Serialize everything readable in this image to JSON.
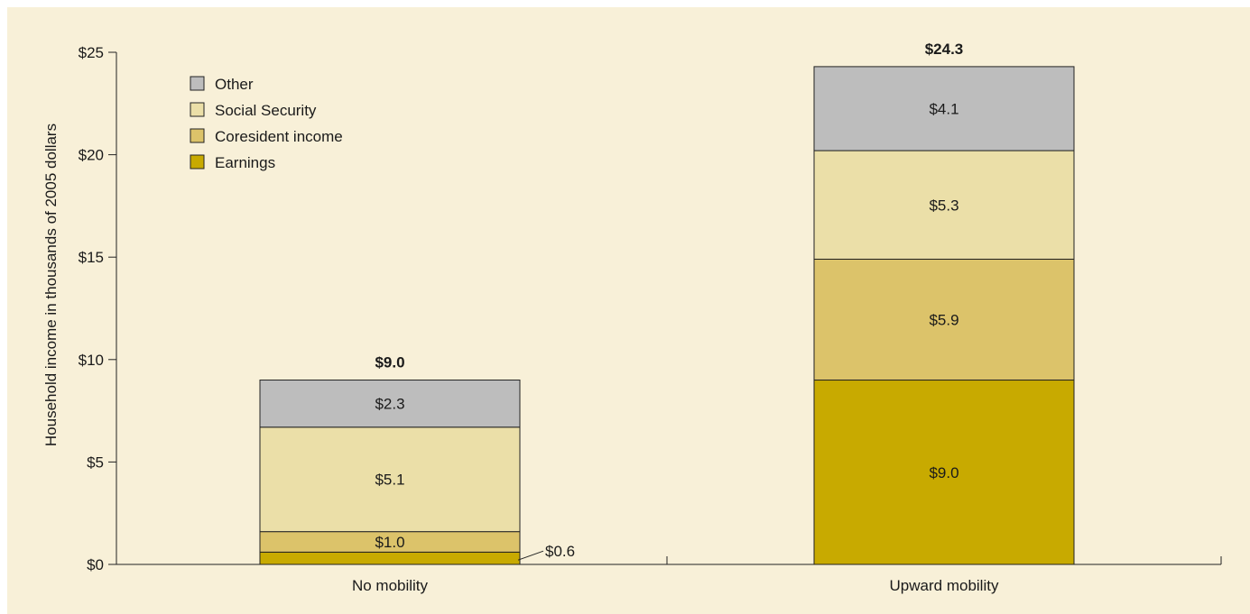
{
  "chart_data": {
    "type": "bar",
    "stacked": true,
    "categories": [
      "No mobility",
      "Upward mobility"
    ],
    "series": [
      {
        "name": "Earnings",
        "values": [
          0.6,
          9.0
        ],
        "labels": [
          "$0.6",
          "$9.0"
        ],
        "color": "#c8aa00"
      },
      {
        "name": "Coresident income",
        "values": [
          1.0,
          5.9
        ],
        "labels": [
          "$1.0",
          "$5.9"
        ],
        "color": "#dcc36a"
      },
      {
        "name": "Social Security",
        "values": [
          5.1,
          5.3
        ],
        "labels": [
          "$5.1",
          "$5.3"
        ],
        "color": "#ebdfa8"
      },
      {
        "name": "Other",
        "values": [
          2.3,
          4.1
        ],
        "labels": [
          "$2.3",
          "$4.1"
        ],
        "color": "#bdbdbd"
      }
    ],
    "totals": [
      9.0,
      24.3
    ],
    "total_labels": [
      "$9.0",
      "$24.3"
    ],
    "ylabel": "Household income in thousands of 2005 dollars",
    "xlabel": "",
    "ylim": [
      0,
      25
    ],
    "yticks": [
      0,
      5,
      10,
      15,
      20,
      25
    ],
    "ytick_labels": [
      "$0",
      "$5",
      "$10",
      "$15",
      "$20",
      "$25"
    ],
    "legend_order": [
      "Other",
      "Social Security",
      "Coresident income",
      "Earnings"
    ],
    "legend_position": "top-left",
    "grid": false
  },
  "colors": {
    "background": "#f8f0d8",
    "outline": "#222222"
  }
}
